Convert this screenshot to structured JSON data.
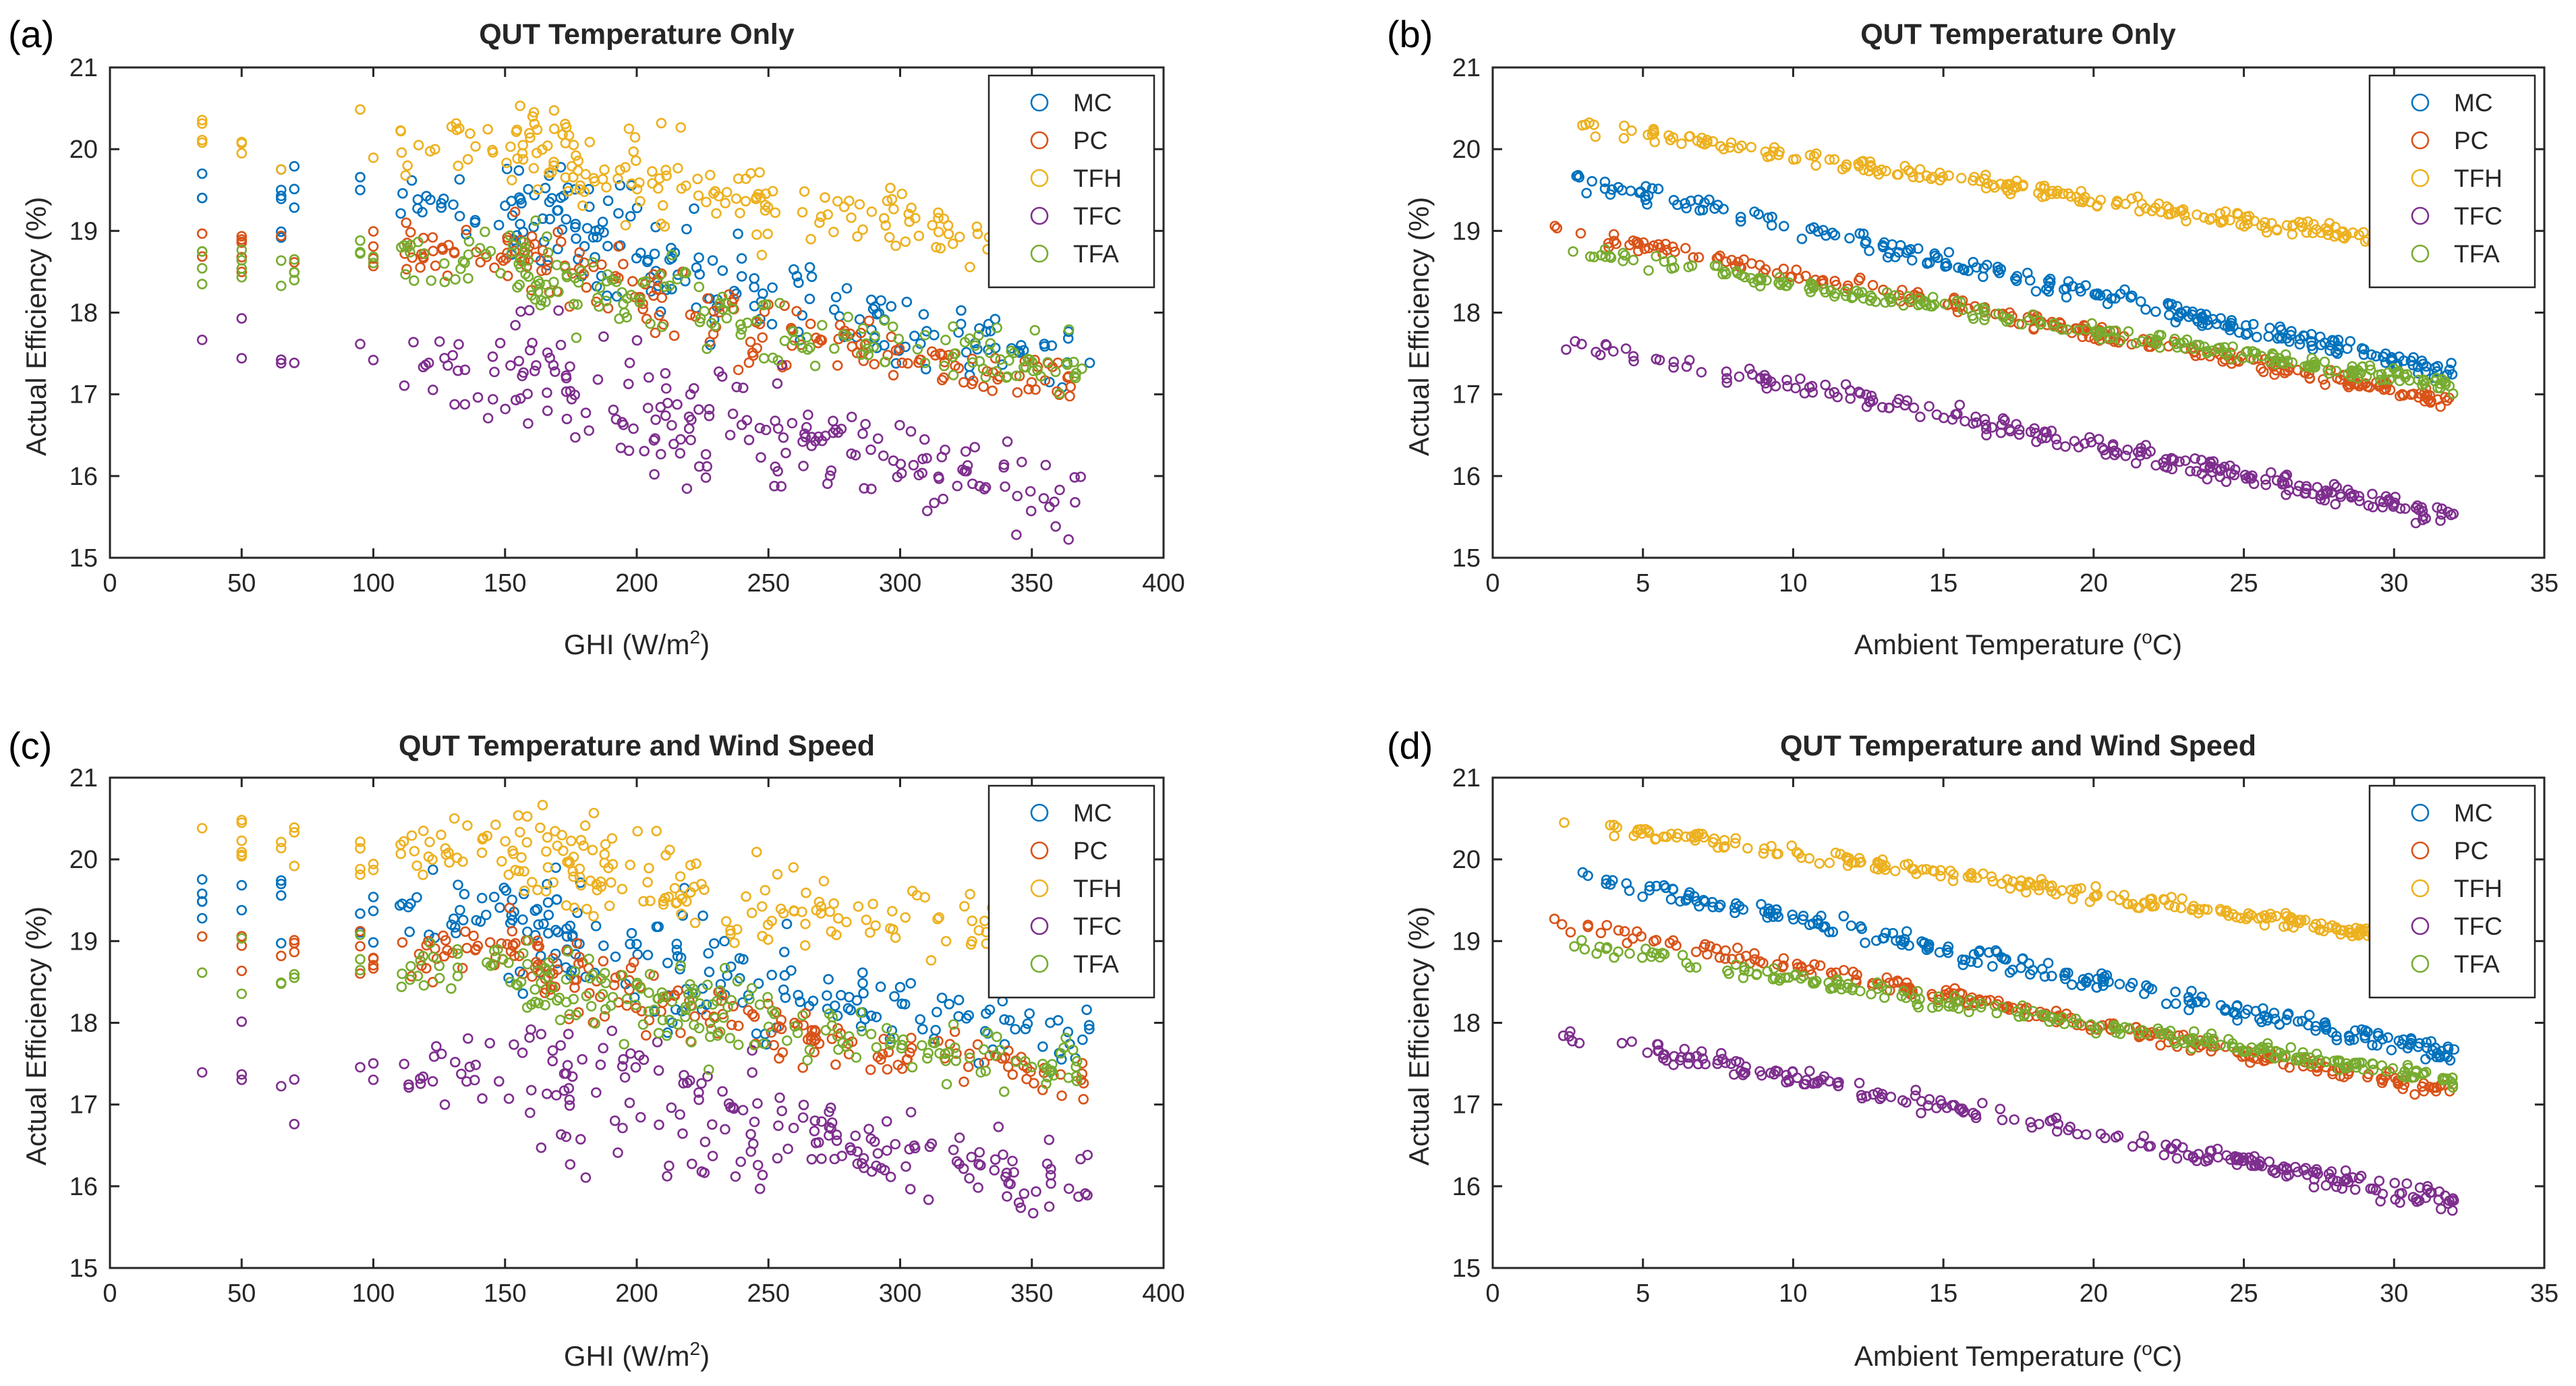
{
  "chart_data": [
    {
      "type": "scatter",
      "panel_label": "(a)",
      "title": "QUT Temperature Only",
      "xlabel": "GHI (W/m",
      "xlabel_sup": "2",
      "xlabel_suffix": ")",
      "ylabel": "Actual Efficiency (%)",
      "xlim": [
        0,
        400
      ],
      "ylim": [
        15,
        21
      ],
      "xticks": [
        0,
        50,
        100,
        150,
        200,
        250,
        300,
        350,
        400
      ],
      "yticks": [
        15,
        16,
        17,
        18,
        19,
        20,
        21
      ],
      "legend_position": "top-right",
      "series": [
        {
          "name": "MC",
          "color": "#0072BD",
          "trend": [
            [
              35,
              19.45
            ],
            [
              150,
              19.25
            ],
            [
              250,
              18.15
            ],
            [
              370,
              17.45
            ]
          ],
          "spread": 0.28
        },
        {
          "name": "PC",
          "color": "#D95319",
          "trend": [
            [
              35,
              18.85
            ],
            [
              150,
              18.75
            ],
            [
              250,
              17.75
            ],
            [
              370,
              17.1
            ]
          ],
          "spread": 0.2
        },
        {
          "name": "TFH",
          "color": "#EDB120",
          "trend": [
            [
              35,
              20.15
            ],
            [
              150,
              20.05
            ],
            [
              250,
              19.3
            ],
            [
              370,
              18.85
            ]
          ],
          "spread": 0.25
        },
        {
          "name": "TFC",
          "color": "#7E2F8E",
          "trend": [
            [
              35,
              17.5
            ],
            [
              150,
              17.25
            ],
            [
              250,
              16.55
            ],
            [
              370,
              15.7
            ]
          ],
          "spread": 0.35
        },
        {
          "name": "TFA",
          "color": "#77AC30",
          "trend": [
            [
              35,
              18.65
            ],
            [
              150,
              18.55
            ],
            [
              250,
              17.8
            ],
            [
              370,
              17.3
            ]
          ],
          "spread": 0.22
        }
      ]
    },
    {
      "type": "scatter",
      "panel_label": "(b)",
      "title": "QUT Temperature Only",
      "xlabel": "Ambient Temperature (",
      "xlabel_sup": "o",
      "xlabel_suffix": "C)",
      "ylabel": "Actual Efficiency (%)",
      "xlim": [
        0,
        35
      ],
      "ylim": [
        15,
        21
      ],
      "xticks": [
        0,
        5,
        10,
        15,
        20,
        25,
        30,
        35
      ],
      "yticks": [
        15,
        16,
        17,
        18,
        19,
        20,
        21
      ],
      "legend_position": "top-right",
      "series": [
        {
          "name": "MC",
          "color": "#0072BD",
          "trend": [
            [
              2,
              19.7
            ],
            [
              32,
              17.25
            ]
          ],
          "spread": 0.08
        },
        {
          "name": "PC",
          "color": "#D95319",
          "trend": [
            [
              2,
              19.05
            ],
            [
              32,
              16.9
            ]
          ],
          "spread": 0.06
        },
        {
          "name": "TFH",
          "color": "#EDB120",
          "trend": [
            [
              2,
              20.35
            ],
            [
              32,
              18.75
            ]
          ],
          "spread": 0.06
        },
        {
          "name": "TFC",
          "color": "#7E2F8E",
          "trend": [
            [
              2,
              17.7
            ],
            [
              32,
              15.5
            ]
          ],
          "spread": 0.08
        },
        {
          "name": "TFA",
          "color": "#77AC30",
          "trend": [
            [
              2,
              18.8
            ],
            [
              32,
              17.1
            ]
          ],
          "spread": 0.06
        }
      ]
    },
    {
      "type": "scatter",
      "panel_label": "(c)",
      "title": "QUT Temperature and Wind Speed",
      "xlabel": "GHI (W/m",
      "xlabel_sup": "2",
      "xlabel_suffix": ")",
      "ylabel": "Actual Efficiency (%)",
      "xlim": [
        0,
        400
      ],
      "ylim": [
        15,
        21
      ],
      "xticks": [
        0,
        50,
        100,
        150,
        200,
        250,
        300,
        350,
        400
      ],
      "yticks": [
        15,
        16,
        17,
        18,
        19,
        20,
        21
      ],
      "legend_position": "top-right",
      "series": [
        {
          "name": "MC",
          "color": "#0072BD",
          "trend": [
            [
              35,
              19.5
            ],
            [
              150,
              19.3
            ],
            [
              250,
              18.4
            ],
            [
              370,
              17.8
            ]
          ],
          "spread": 0.28
        },
        {
          "name": "PC",
          "color": "#D95319",
          "trend": [
            [
              35,
              18.9
            ],
            [
              150,
              18.8
            ],
            [
              250,
              17.9
            ],
            [
              370,
              17.3
            ]
          ],
          "spread": 0.2
        },
        {
          "name": "TFH",
          "color": "#EDB120",
          "trend": [
            [
              35,
              20.2
            ],
            [
              150,
              20.1
            ],
            [
              250,
              19.45
            ],
            [
              370,
              19.0
            ]
          ],
          "spread": 0.25
        },
        {
          "name": "TFC",
          "color": "#7E2F8E",
          "trend": [
            [
              35,
              17.55
            ],
            [
              150,
              17.35
            ],
            [
              250,
              16.75
            ],
            [
              370,
              15.95
            ]
          ],
          "spread": 0.35
        },
        {
          "name": "TFA",
          "color": "#77AC30",
          "trend": [
            [
              35,
              18.7
            ],
            [
              150,
              18.6
            ],
            [
              250,
              17.95
            ],
            [
              370,
              17.4
            ]
          ],
          "spread": 0.22
        }
      ]
    },
    {
      "type": "scatter",
      "panel_label": "(d)",
      "title": "QUT Temperature and Wind Speed",
      "xlabel": "Ambient Temperature (",
      "xlabel_sup": "o",
      "xlabel_suffix": "C)",
      "ylabel": "Actual Efficiency (%)",
      "xlim": [
        0,
        35
      ],
      "ylim": [
        15,
        21
      ],
      "xticks": [
        0,
        5,
        10,
        15,
        20,
        25,
        30,
        35
      ],
      "yticks": [
        15,
        16,
        17,
        18,
        19,
        20,
        21
      ],
      "legend_position": "top-right",
      "series": [
        {
          "name": "MC",
          "color": "#0072BD",
          "trend": [
            [
              2,
              19.9
            ],
            [
              32,
              17.6
            ]
          ],
          "spread": 0.08
        },
        {
          "name": "PC",
          "color": "#D95319",
          "trend": [
            [
              2,
              19.25
            ],
            [
              32,
              17.15
            ]
          ],
          "spread": 0.06
        },
        {
          "name": "TFH",
          "color": "#EDB120",
          "trend": [
            [
              2,
              20.5
            ],
            [
              32,
              18.95
            ]
          ],
          "spread": 0.06
        },
        {
          "name": "TFC",
          "color": "#7E2F8E",
          "trend": [
            [
              2,
              17.9
            ],
            [
              32,
              15.8
            ]
          ],
          "spread": 0.08
        },
        {
          "name": "TFA",
          "color": "#77AC30",
          "trend": [
            [
              2,
              19.0
            ],
            [
              32,
              17.3
            ]
          ],
          "spread": 0.06
        }
      ]
    }
  ]
}
